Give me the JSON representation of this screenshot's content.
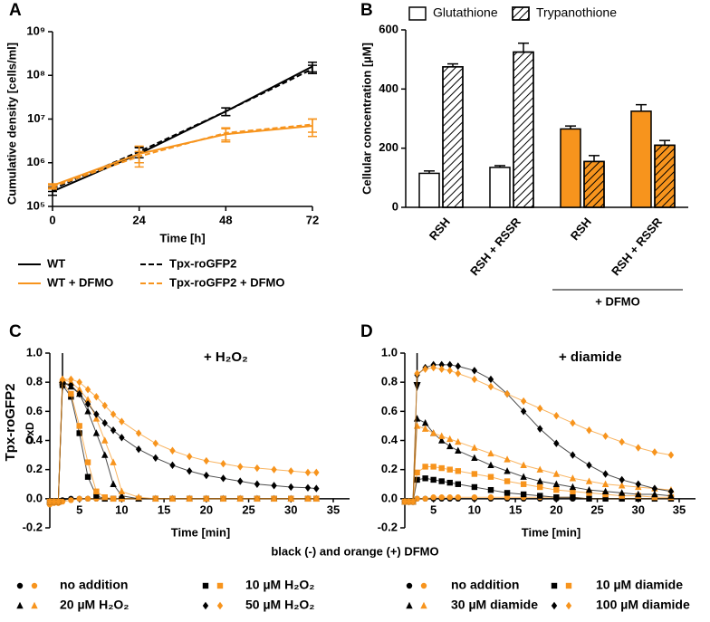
{
  "caption": "black (-) and orange (+) DFMO",
  "chart_data": [
    {
      "panel": "A",
      "type": "line",
      "xlabel": "Time [h]",
      "ylabel": "Cumulative density [cells/ml]",
      "x": [
        0,
        24,
        48,
        72
      ],
      "xlim": [
        0,
        72
      ],
      "xticks": [
        0,
        24,
        48,
        72
      ],
      "yscale": "log",
      "ylim": [
        100000,
        1000000000
      ],
      "yticks": [
        {
          "value": 100000,
          "label": "10⁵"
        },
        {
          "value": 1000000,
          "label": "10⁶"
        },
        {
          "value": 10000000,
          "label": "10⁷"
        },
        {
          "value": 100000000,
          "label": "10⁸"
        },
        {
          "value": 1000000000,
          "label": "10⁹"
        }
      ],
      "series": [
        {
          "name": "WT",
          "color": "#000000",
          "dashed": false,
          "values": [
            220000,
            1600000,
            15000000,
            160000000
          ],
          "errors": [
            40000,
            600000,
            3000000,
            40000000
          ]
        },
        {
          "name": "Tpx-roGFP2",
          "color": "#000000",
          "dashed": true,
          "values": [
            250000,
            1800000,
            15000000,
            140000000
          ],
          "errors": [
            30000,
            500000,
            3000000,
            30000000
          ]
        },
        {
          "name": "WT + DFMO",
          "color": "#f7941d",
          "dashed": false,
          "values": [
            300000,
            1600000,
            4500000,
            7000000
          ],
          "errors": [
            30000,
            800000,
            1500000,
            3000000
          ]
        },
        {
          "name": "Tpx-roGFP2 + DFMO",
          "color": "#f7941d",
          "dashed": true,
          "values": [
            280000,
            1400000,
            4800000,
            7500000
          ],
          "errors": [
            30000,
            400000,
            1500000,
            2500000
          ]
        }
      ]
    },
    {
      "panel": "B",
      "type": "bar",
      "ylabel": "Cellular concentration [µM]",
      "categories": [
        "RSH",
        "RSH + RSSR",
        "RSH",
        "RSH + RSSR"
      ],
      "ylim": [
        0,
        600
      ],
      "yticks": [
        0,
        200,
        400,
        600
      ],
      "color": "#ffffff",
      "groups": [
        {
          "label": "+ DFMO",
          "categories": [
            2,
            3
          ],
          "color": "#f7941d"
        }
      ],
      "series": [
        {
          "name": "Glutathione",
          "hatch": false,
          "values": [
            115,
            135,
            265,
            325
          ],
          "errors": [
            8,
            6,
            10,
            22
          ]
        },
        {
          "name": "Trypanothione",
          "hatch": true,
          "values": [
            475,
            525,
            155,
            210
          ],
          "errors": [
            10,
            30,
            20,
            16
          ]
        }
      ]
    },
    {
      "panel": "C",
      "type": "scatter",
      "annotation": "+ H₂O₂",
      "ylabel": [
        "Tpx-roGFP2",
        "OxD"
      ],
      "xlabel": "Time [min]",
      "arrow_x": 3,
      "colors": [
        "#000000",
        "#f7941d"
      ],
      "x": [
        1.5,
        2,
        2.5,
        3,
        4,
        5,
        6,
        7,
        8,
        9,
        10,
        12,
        14,
        16,
        18,
        20,
        22,
        24,
        26,
        28,
        30,
        32,
        33
      ],
      "xlim": [
        1.5,
        35
      ],
      "xticks": [
        5,
        10,
        15,
        20,
        25,
        30,
        35
      ],
      "ylim": [
        -0.2,
        1.0
      ],
      "yticks": [
        {
          "value": 1,
          "label": "1.0"
        },
        0.8,
        0.6,
        0.4,
        0.2,
        {
          "value": 0,
          "label": "0.0"
        },
        -0.2
      ],
      "series": [
        {
          "name": "no addition",
          "marker": "circle",
          "values": [
            -0.03,
            -0.02,
            -0.02,
            -0.01,
            0,
            0,
            0,
            0,
            0,
            0,
            0,
            0,
            0,
            0,
            0,
            0,
            0,
            0,
            0,
            0,
            0,
            0,
            0
          ],
          "dfmo_values": [
            -0.04,
            -0.03,
            -0.03,
            -0.02,
            -0.01,
            0,
            0,
            0,
            0,
            0,
            0,
            0,
            0,
            0,
            0,
            0,
            0,
            0,
            0,
            0,
            0,
            0,
            0
          ]
        },
        {
          "name": "10 µM H₂O₂",
          "marker": "square",
          "values": [
            -0.02,
            -0.02,
            -0.02,
            0.78,
            0.7,
            0.45,
            0.15,
            0.02,
            0,
            0,
            0,
            0,
            0,
            0,
            0,
            0,
            0,
            0,
            0,
            0,
            0,
            0,
            0
          ],
          "dfmo_values": [
            -0.02,
            -0.02,
            -0.02,
            0.8,
            0.72,
            0.5,
            0.25,
            0.05,
            0.01,
            0,
            0,
            0,
            0,
            0,
            0,
            0,
            0,
            0,
            0,
            0,
            0,
            0,
            0
          ]
        },
        {
          "name": "20 µM H₂O₂",
          "marker": "triangle",
          "values": [
            -0.02,
            -0.02,
            -0.02,
            0.8,
            0.77,
            0.72,
            0.6,
            0.45,
            0.3,
            0.1,
            0.02,
            0,
            0,
            0,
            0,
            0,
            0,
            0,
            0,
            0,
            0,
            0,
            0
          ],
          "dfmo_values": [
            -0.02,
            -0.02,
            -0.02,
            0.82,
            0.8,
            0.75,
            0.68,
            0.55,
            0.4,
            0.25,
            0.05,
            0.01,
            0,
            0,
            0,
            0,
            0,
            0,
            0,
            0,
            0,
            0,
            0
          ]
        },
        {
          "name": "50 µM H₂O₂",
          "marker": "diamond",
          "values": [
            -0.02,
            -0.02,
            -0.02,
            0.8,
            0.78,
            0.72,
            0.65,
            0.58,
            0.52,
            0.47,
            0.42,
            0.34,
            0.28,
            0.23,
            0.19,
            0.16,
            0.14,
            0.12,
            0.1,
            0.09,
            0.08,
            0.075,
            0.07
          ],
          "dfmo_values": [
            -0.02,
            -0.02,
            -0.02,
            0.82,
            0.82,
            0.8,
            0.75,
            0.7,
            0.64,
            0.58,
            0.53,
            0.45,
            0.38,
            0.33,
            0.29,
            0.26,
            0.24,
            0.22,
            0.21,
            0.2,
            0.19,
            0.18,
            0.18
          ]
        }
      ]
    },
    {
      "panel": "D",
      "type": "scatter",
      "annotation": "+ diamide",
      "xlabel": "Time [min]",
      "arrow_x": 3,
      "colors": [
        "#000000",
        "#f7941d"
      ],
      "x": [
        1.5,
        2,
        2.5,
        3,
        4,
        5,
        6,
        7,
        8,
        10,
        12,
        14,
        16,
        18,
        20,
        22,
        24,
        26,
        28,
        30,
        32,
        34
      ],
      "xlim": [
        1.5,
        35
      ],
      "xticks": [
        5,
        10,
        15,
        20,
        25,
        30,
        35
      ],
      "ylim": [
        -0.2,
        1.0
      ],
      "yticks": [
        {
          "value": 1,
          "label": "1.0"
        },
        0.8,
        0.6,
        0.4,
        0.2,
        {
          "value": 0,
          "label": "0.0"
        },
        -0.2
      ],
      "series": [
        {
          "name": "no addition",
          "marker": "circle",
          "values": [
            -0.02,
            -0.02,
            -0.02,
            0,
            0,
            0,
            0,
            0,
            0,
            0,
            0,
            0,
            0,
            0,
            0,
            0,
            0,
            0,
            0,
            0,
            0,
            0
          ],
          "dfmo_values": [
            -0.02,
            -0.02,
            -0.02,
            0,
            0,
            0.01,
            0.01,
            0.01,
            0.01,
            0.01,
            0.01,
            0.01,
            0.01,
            0.01,
            0.01,
            0.01,
            0,
            0,
            0,
            0,
            0,
            0
          ]
        },
        {
          "name": "10 µM diamide",
          "marker": "square",
          "values": [
            -0.02,
            -0.02,
            -0.02,
            0.13,
            0.14,
            0.13,
            0.12,
            0.11,
            0.1,
            0.08,
            0.06,
            0.04,
            0.03,
            0.02,
            0.01,
            0.01,
            0,
            0,
            0,
            0,
            0,
            0
          ],
          "dfmo_values": [
            -0.02,
            -0.02,
            -0.02,
            0.18,
            0.22,
            0.22,
            0.21,
            0.2,
            0.19,
            0.17,
            0.15,
            0.12,
            0.1,
            0.08,
            0.06,
            0.05,
            0.04,
            0.03,
            0.02,
            0.02,
            0.01,
            0.01
          ]
        },
        {
          "name": "30 µM diamide",
          "marker": "triangle",
          "values": [
            -0.02,
            -0.02,
            -0.02,
            0.55,
            0.52,
            0.45,
            0.4,
            0.36,
            0.33,
            0.28,
            0.23,
            0.19,
            0.15,
            0.12,
            0.1,
            0.08,
            0.06,
            0.05,
            0.04,
            0.03,
            0.03,
            0.02
          ],
          "dfmo_values": [
            -0.02,
            -0.02,
            -0.02,
            0.5,
            0.48,
            0.45,
            0.43,
            0.41,
            0.39,
            0.35,
            0.31,
            0.27,
            0.23,
            0.2,
            0.17,
            0.14,
            0.12,
            0.1,
            0.09,
            0.08,
            0.07,
            0.06
          ]
        },
        {
          "name": "100 µM diamide",
          "marker": "diamond",
          "values": [
            -0.02,
            -0.02,
            -0.02,
            0.85,
            0.9,
            0.92,
            0.92,
            0.92,
            0.91,
            0.88,
            0.82,
            0.72,
            0.6,
            0.48,
            0.38,
            0.3,
            0.23,
            0.17,
            0.13,
            0.1,
            0.07,
            0.05
          ],
          "dfmo_values": [
            -0.02,
            -0.02,
            -0.02,
            0.86,
            0.89,
            0.9,
            0.89,
            0.88,
            0.86,
            0.82,
            0.77,
            0.72,
            0.67,
            0.62,
            0.57,
            0.52,
            0.47,
            0.43,
            0.39,
            0.35,
            0.32,
            0.3
          ]
        }
      ]
    }
  ]
}
